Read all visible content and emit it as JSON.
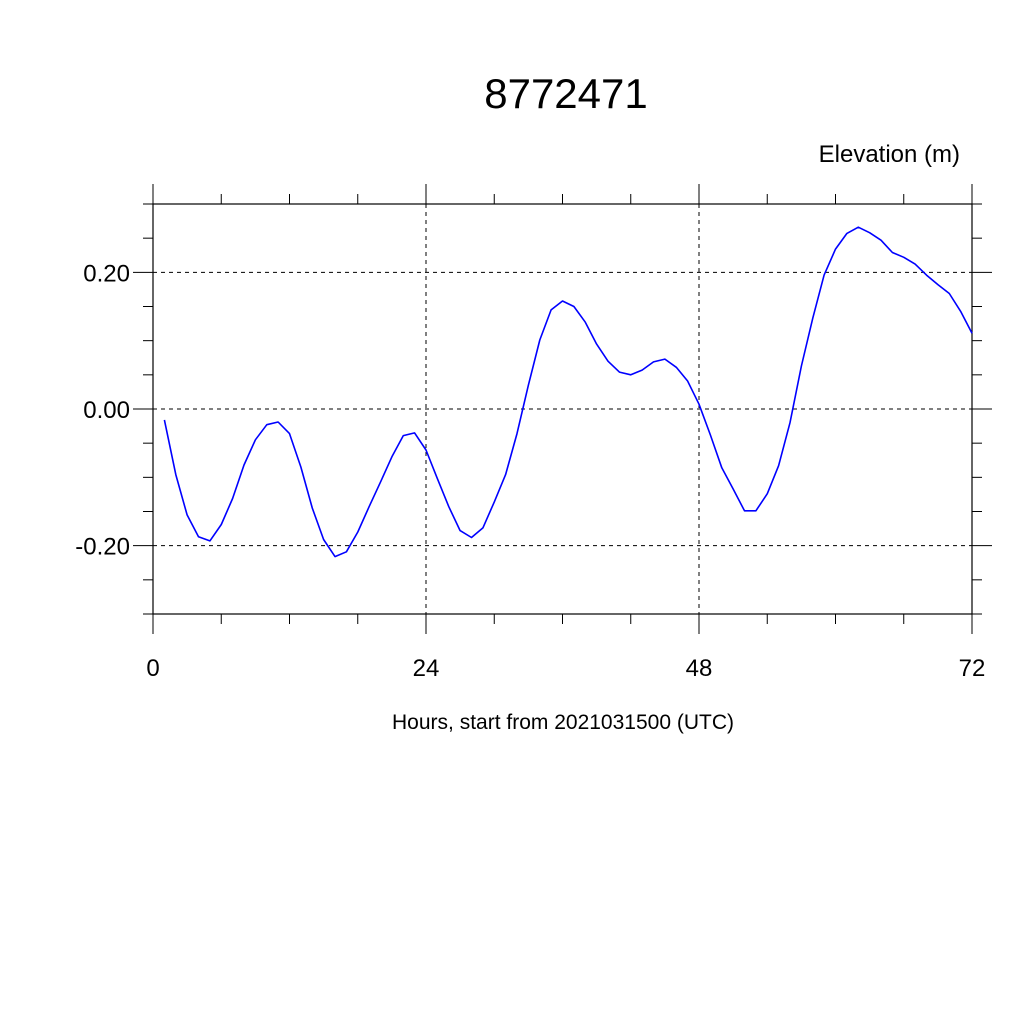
{
  "chart_data": {
    "type": "line",
    "title": "8772471",
    "ylabel": "Elevation (m)",
    "xlabel": "Hours, start from 2021031500 (UTC)",
    "xlim": [
      0,
      72
    ],
    "ylim": [
      -0.3,
      0.3
    ],
    "x_ticks": [
      0,
      24,
      48,
      72
    ],
    "x_tick_labels": [
      "0",
      "24",
      "48",
      "72"
    ],
    "y_ticks": [
      -0.2,
      0.0,
      0.2
    ],
    "y_tick_labels": [
      "-0.20",
      "0.00",
      "0.20"
    ],
    "grid": "dashed at major ticks",
    "line_color": "#0000ff",
    "series": [
      {
        "x": [
          1,
          2,
          3,
          4,
          5,
          6,
          7,
          8,
          9,
          10,
          11,
          12,
          13,
          14,
          15,
          16,
          17,
          18,
          19,
          20,
          21,
          22,
          23,
          24,
          25,
          26,
          27,
          28,
          29,
          30,
          31,
          32,
          33,
          34,
          35,
          36,
          37,
          38,
          39,
          40,
          41,
          42,
          43,
          44,
          45,
          46,
          47,
          48,
          49,
          50,
          51,
          52,
          53,
          54,
          55,
          56,
          57,
          58,
          59,
          60,
          61,
          62,
          63,
          64,
          65,
          66,
          67,
          68,
          69,
          70,
          71,
          72
        ],
        "values": [
          -0.016,
          -0.096,
          -0.155,
          -0.187,
          -0.193,
          -0.169,
          -0.131,
          -0.082,
          -0.045,
          -0.023,
          -0.019,
          -0.036,
          -0.085,
          -0.145,
          -0.191,
          -0.216,
          -0.209,
          -0.18,
          -0.143,
          -0.107,
          -0.07,
          -0.039,
          -0.035,
          -0.06,
          -0.102,
          -0.143,
          -0.178,
          -0.188,
          -0.174,
          -0.136,
          -0.096,
          -0.036,
          0.035,
          0.101,
          0.145,
          0.158,
          0.15,
          0.127,
          0.095,
          0.07,
          0.054,
          0.05,
          0.057,
          0.069,
          0.073,
          0.061,
          0.041,
          0.007,
          -0.038,
          -0.086,
          -0.117,
          -0.149,
          -0.149,
          -0.124,
          -0.083,
          -0.02,
          0.063,
          0.133,
          0.196,
          0.234,
          0.257,
          0.266,
          0.258,
          0.247,
          0.229,
          0.222,
          0.212,
          0.196,
          0.182,
          0.169,
          0.143,
          0.111
        ]
      }
    ]
  }
}
